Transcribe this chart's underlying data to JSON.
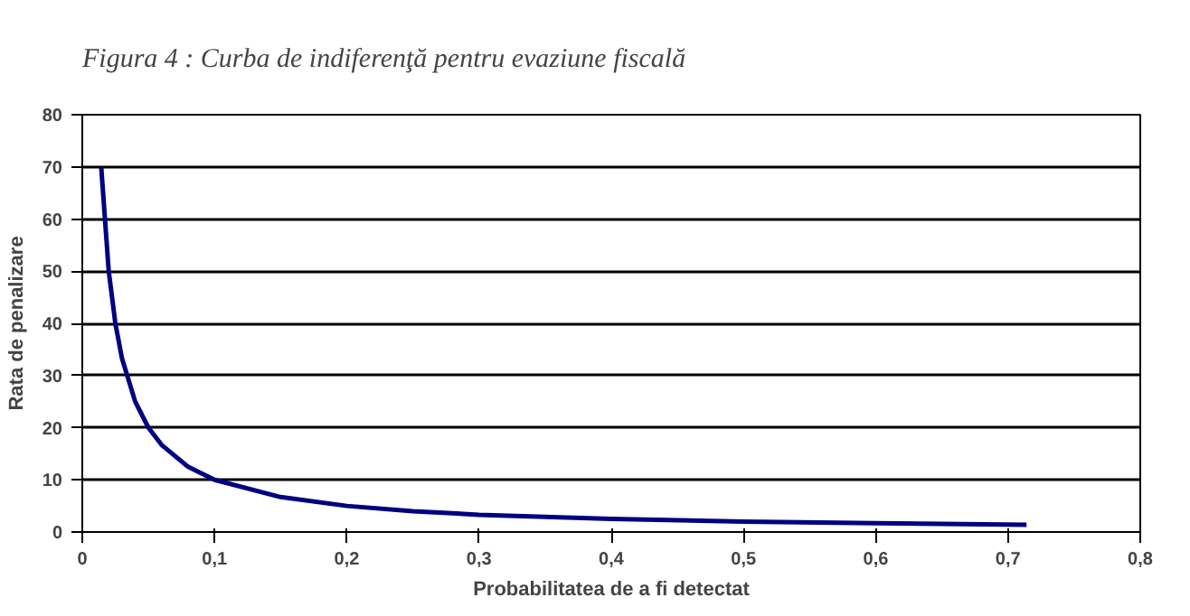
{
  "chart_data": {
    "type": "line",
    "title": "Figura 4    : Curba de indiferenţă pentru evaziune fiscală",
    "xlabel": "Probabilitatea de a fi detectat",
    "ylabel": "Rata de penalizare",
    "x": [
      0.0143,
      0.02,
      0.025,
      0.03,
      0.04,
      0.05,
      0.06,
      0.08,
      0.1,
      0.15,
      0.2,
      0.25,
      0.3,
      0.4,
      0.5,
      0.6,
      0.714
    ],
    "series": [
      {
        "color": "#000080",
        "values": [
          70,
          50,
          40,
          33.3,
          25,
          20,
          16.7,
          12.5,
          10,
          6.7,
          5,
          4,
          3.3,
          2.5,
          2,
          1.7,
          1.4
        ]
      }
    ],
    "xlim": [
      0,
      0.8
    ],
    "ylim": [
      0,
      80
    ],
    "xticks": [
      {
        "value": 0,
        "label": "0"
      },
      {
        "value": 0.1,
        "label": "0,1"
      },
      {
        "value": 0.2,
        "label": "0,2"
      },
      {
        "value": 0.3,
        "label": "0,3"
      },
      {
        "value": 0.4,
        "label": "0,4"
      },
      {
        "value": 0.5,
        "label": "0,5"
      },
      {
        "value": 0.6,
        "label": "0,6"
      },
      {
        "value": 0.7,
        "label": "0,7"
      },
      {
        "value": 0.8,
        "label": "0,8"
      }
    ],
    "yticks": [
      0,
      10,
      20,
      30,
      40,
      50,
      60,
      70,
      80
    ],
    "grid": "y",
    "marker": "none",
    "line_style": "solid"
  }
}
